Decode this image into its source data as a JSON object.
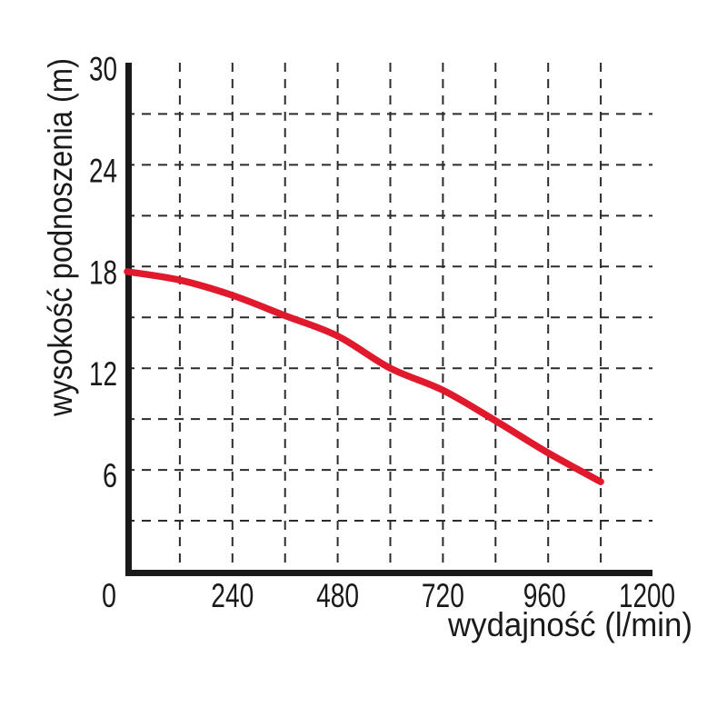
{
  "chart_data": {
    "type": "line",
    "title": "",
    "xlabel": "wydajność (l/min)",
    "ylabel": "wysokość podnoszenia (m)",
    "xlim": [
      0,
      1200
    ],
    "ylim": [
      0,
      30
    ],
    "x_ticks": [
      0,
      240,
      480,
      720,
      960,
      1200
    ],
    "y_ticks": [
      6,
      12,
      18,
      24,
      30
    ],
    "grid": {
      "style": "dashed",
      "x_minor_step": 120,
      "y_minor_step": 3
    },
    "colors": {
      "axis": "#1a1a1a",
      "grid": "#2b2b2b",
      "curve": "#e0192c",
      "text": "#1a1a1a",
      "background": "#ffffff"
    },
    "series": [
      {
        "name": "pump-head-curve",
        "x": [
          0,
          120,
          240,
          360,
          480,
          600,
          720,
          840,
          960,
          1080
        ],
        "y": [
          17.7,
          17.2,
          16.3,
          15.1,
          13.9,
          12.0,
          10.7,
          8.9,
          7.0,
          5.3
        ]
      }
    ]
  }
}
